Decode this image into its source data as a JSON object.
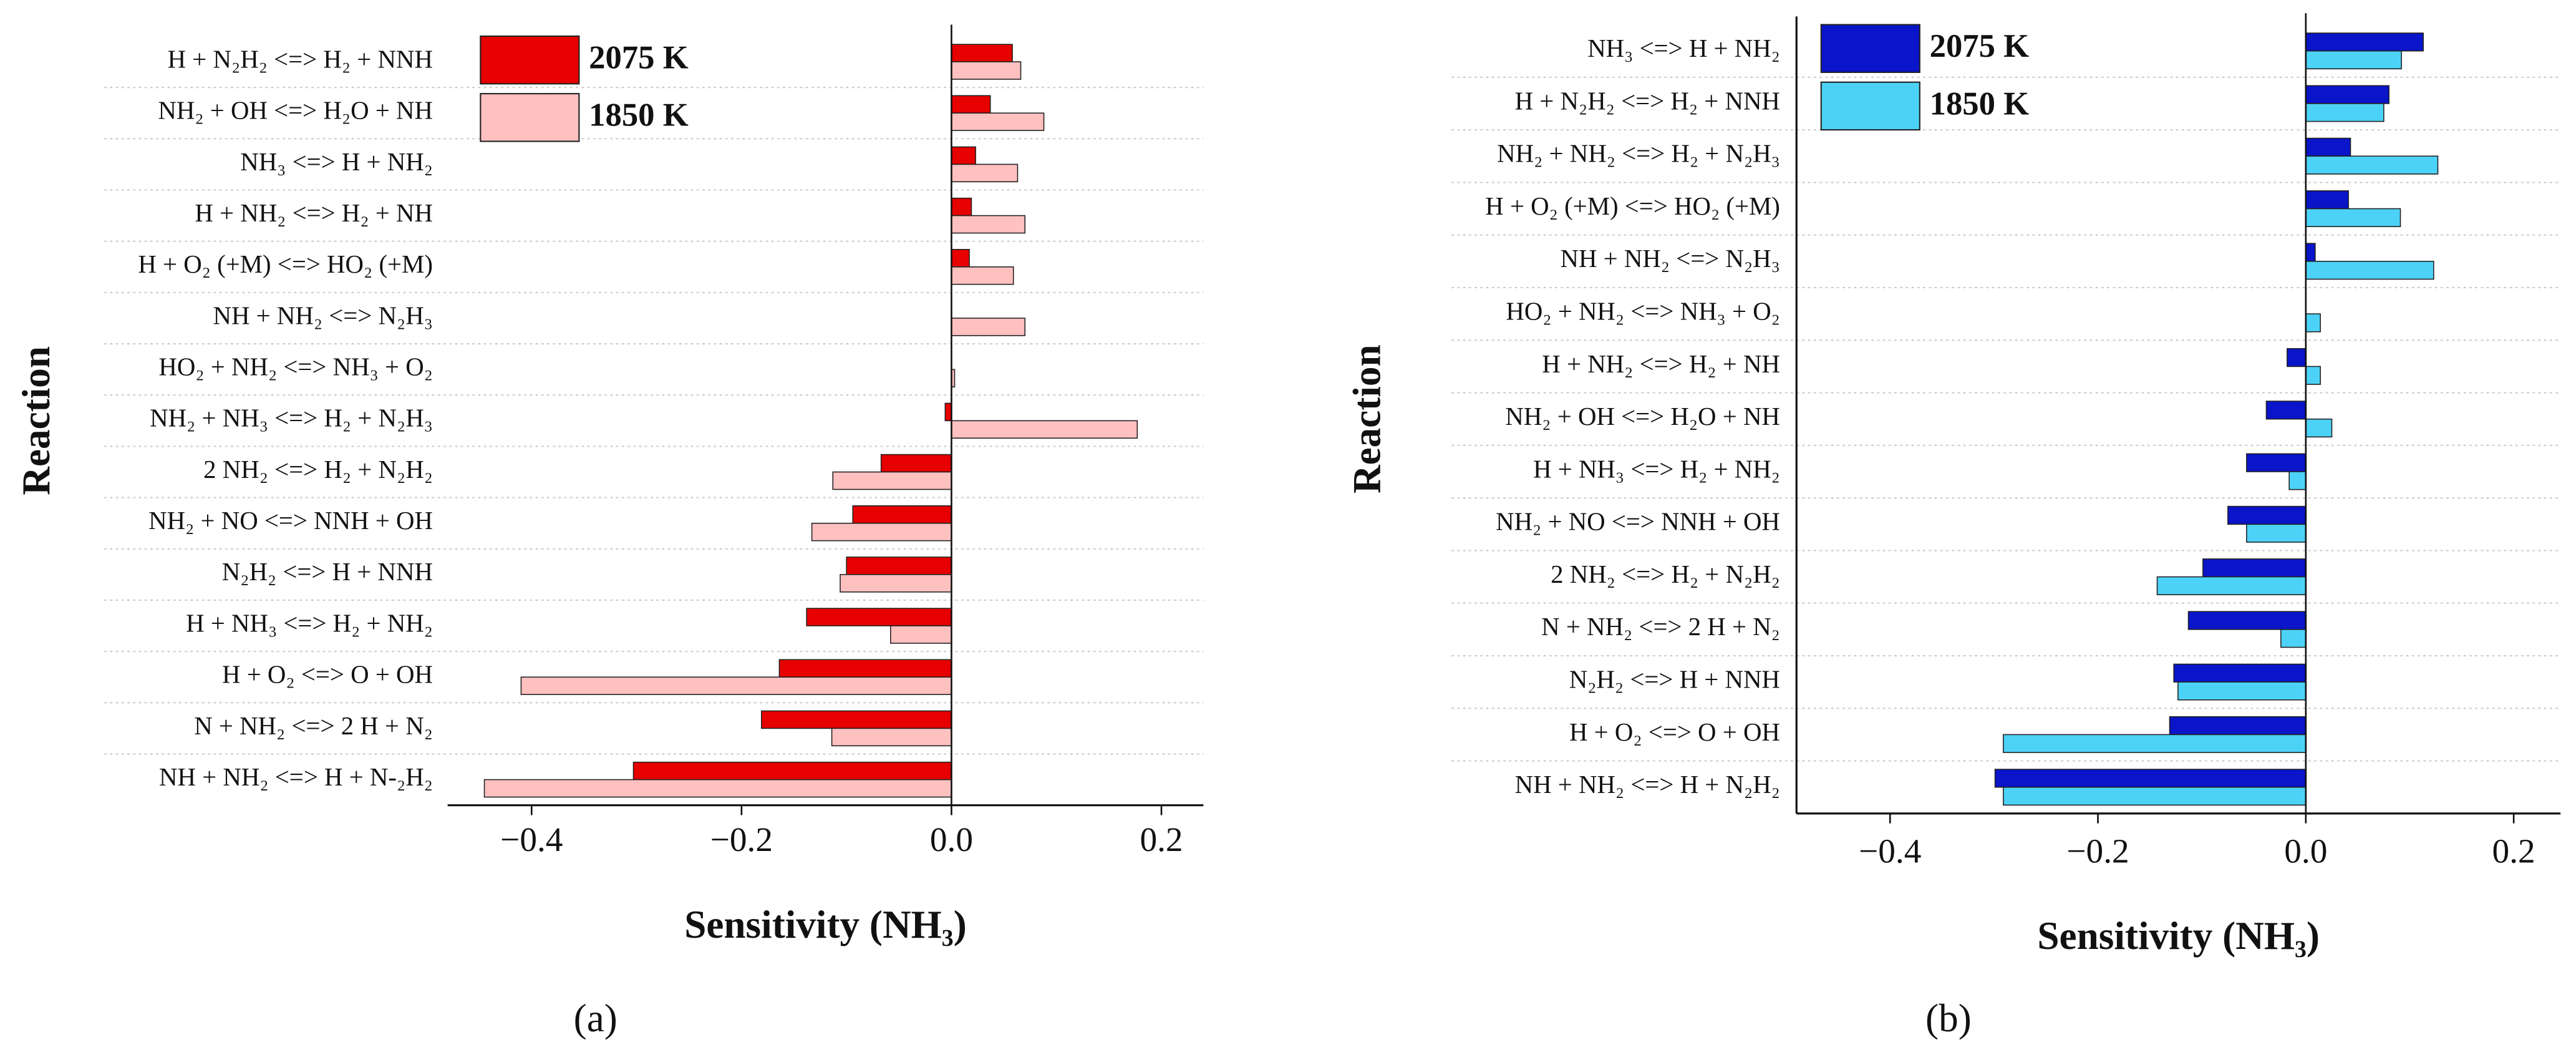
{
  "chart_data": [
    {
      "type": "bar",
      "orientation": "horizontal",
      "panel_label": "(a)",
      "xlabel": "Sensitivity (NH₃)",
      "ylabel": "Reaction",
      "categories": [
        "H + N₂H₂ <=> H₂ + NNH",
        "NH₂ + OH <=> H₂O + NH",
        "NH₃ <=> H + NH₂",
        "H + NH₂ <=> H₂ + NH",
        "H + O₂ (+M) <=> HO₂ (+M)",
        "NH + NH₂ <=> N₂H₃",
        "HO₂ + NH₂ <=> NH₃ + O₂",
        "NH₂ + NH₃ <=> H₂ + N₂H₃",
        "2 NH₂ <=> H₂ + N₂H₂",
        "NH₂ + NO <=> NNH + OH",
        "N₂H₂ <=> H + NNH",
        "H + NH₃ <=> H₂ + NH₂",
        "H + O₂ <=> O + OH",
        "N + NH₂ <=> 2 H + N₂",
        "NH + NH₂ <=> H + N-₂H₂"
      ],
      "series": [
        {
          "name": "2075 K",
          "color": "#e60000",
          "values": [
            0.058,
            0.037,
            0.023,
            0.019,
            0.017,
            0,
            0,
            -0.006,
            -0.067,
            -0.094,
            -0.1,
            -0.138,
            -0.164,
            -0.181,
            -0.303
          ]
        },
        {
          "name": "1850 K",
          "color": "#ffc0c0",
          "values": [
            0.066,
            0.088,
            0.063,
            0.07,
            0.059,
            0.07,
            0.003,
            0.177,
            -0.113,
            -0.133,
            -0.106,
            -0.058,
            -0.41,
            -0.114,
            -0.445
          ]
        }
      ],
      "xlim": [
        -0.48,
        0.24
      ],
      "xticks": [
        {
          "value": -0.4,
          "label": "−0.4"
        },
        {
          "value": -0.2,
          "label": "−0.2"
        },
        {
          "value": 0,
          "label": "0.0"
        },
        {
          "value": 0.2,
          "label": "0.2"
        }
      ],
      "legend": "upper left"
    },
    {
      "type": "bar",
      "orientation": "horizontal",
      "panel_label": "(b)",
      "xlabel": "Sensitivity (NH₃)",
      "ylabel": "Reaction",
      "categories": [
        "NH₃ <=> H + NH₂",
        "H + N₂H₂ <=> H₂ + NNH",
        "NH₂ + NH₂ <=> H₂ + N₂H₃",
        "H + O₂ (+M) <=> HO₂ (+M)",
        "NH + NH₂ <=> N₂H₃",
        "HO₂ + NH₂ <=> NH₃ + O₂",
        "H + NH₂ <=> H₂ + NH",
        "NH₂ + OH <=> H₂O + NH",
        "H + NH₃ <=> H₂ + NH₂",
        "NH₂ + NO <=> NNH + OH",
        "2 NH₂ <=> H₂ + N₂H₂",
        "N + NH₂ <=> 2 H + N₂",
        "N₂H₂ <=> H + NNH",
        "H + O₂ <=> O + OH",
        "NH + NH₂ <=> H + N₂H₂"
      ],
      "series": [
        {
          "name": "2075 K",
          "color": "#0a14c8",
          "values": [
            0.113,
            0.08,
            0.043,
            0.041,
            0.009,
            0,
            -0.018,
            -0.038,
            -0.057,
            -0.075,
            -0.099,
            -0.113,
            -0.127,
            -0.131,
            -0.299
          ]
        },
        {
          "name": "1850 K",
          "color": "#4dd2f7",
          "values": [
            0.092,
            0.075,
            0.127,
            0.091,
            0.123,
            0.014,
            0.014,
            0.025,
            -0.016,
            -0.057,
            -0.143,
            -0.024,
            -0.123,
            -0.291,
            -0.291
          ]
        }
      ],
      "xlim": [
        -0.49,
        0.245
      ],
      "xticks": [
        {
          "value": -0.4,
          "label": "−0.4"
        },
        {
          "value": -0.2,
          "label": "−0.2"
        },
        {
          "value": 0,
          "label": "0.0"
        },
        {
          "value": 0.2,
          "label": "0.2"
        }
      ],
      "legend": "upper left"
    }
  ]
}
